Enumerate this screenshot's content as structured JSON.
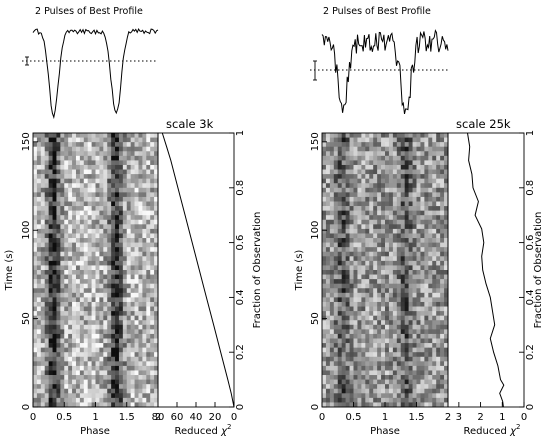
{
  "chart_data": [
    {
      "type": "heatmap",
      "panel": "left",
      "profile_title": "2 Pulses of Best Profile",
      "scale_label": "scale 3k",
      "grid_columns": 32,
      "grid_rows": 60,
      "contrast": 0.55,
      "phase_axis": {
        "label": "Phase",
        "range": [
          0,
          2
        ],
        "ticks": [
          0,
          0.5,
          1,
          1.5,
          2
        ],
        "tick_labels": [
          "0",
          "0.5",
          "1",
          "1.5",
          "2"
        ]
      },
      "time_axis": {
        "label": "Time (s)",
        "range": [
          0,
          155
        ],
        "ticks": [
          0,
          50,
          100,
          150
        ],
        "tick_labels": [
          "0",
          "50",
          "100",
          "150"
        ]
      },
      "chi2_axis": {
        "label": "Reduced χ²",
        "label_main": "Reduced",
        "label_symbol": "χ",
        "label_sup": "2",
        "range": [
          80,
          0
        ],
        "ticks": [
          80,
          60,
          40,
          20,
          0
        ],
        "tick_labels": [
          "80",
          "60",
          "40",
          "20",
          "0"
        ]
      },
      "fraction_axis": {
        "label": "Fraction of Observation",
        "range": [
          0,
          1
        ],
        "ticks": [
          0,
          0.2,
          0.4,
          0.6,
          0.8,
          1
        ],
        "tick_labels": [
          "0",
          "0.2",
          "0.4",
          "0.6",
          "0.8",
          "1"
        ]
      },
      "chi2_curve": {
        "fraction": [
          0,
          0.05,
          0.1,
          0.2,
          0.3,
          0.4,
          0.5,
          0.6,
          0.7,
          0.8,
          0.9,
          0.95,
          1.0
        ],
        "chi2": [
          0,
          3,
          6.5,
          14,
          21.5,
          29,
          36.5,
          44,
          51.5,
          59,
          66.5,
          71,
          75.5
        ]
      }
    },
    {
      "type": "heatmap",
      "panel": "right",
      "profile_title": "2 Pulses of Best Profile",
      "scale_label": "scale 25k",
      "grid_columns": 32,
      "grid_rows": 60,
      "contrast": 0.25,
      "phase_axis": {
        "label": "Phase",
        "range": [
          0,
          2
        ],
        "ticks": [
          0,
          0.5,
          1,
          1.5,
          2
        ],
        "tick_labels": [
          "0",
          "0.5",
          "1",
          "1.5",
          "2"
        ]
      },
      "time_axis": {
        "label": "Time (s)",
        "range": [
          0,
          155
        ],
        "ticks": [
          0,
          50,
          100,
          150
        ],
        "tick_labels": [
          "0",
          "50",
          "100",
          "150"
        ]
      },
      "chi2_axis": {
        "label": "Reduced χ²",
        "label_main": "Reduced",
        "label_symbol": "χ",
        "label_sup": "2",
        "range": [
          3.5,
          0
        ],
        "ticks": [
          3,
          2,
          1,
          0
        ],
        "tick_labels": [
          "3",
          "2",
          "1",
          "0"
        ]
      },
      "fraction_axis": {
        "label": "Fraction of Observation",
        "range": [
          0,
          1
        ],
        "ticks": [
          0,
          0.2,
          0.4,
          0.6,
          0.8,
          1
        ],
        "tick_labels": [
          "0",
          "0.2",
          "0.4",
          "0.6",
          "0.8",
          "1"
        ]
      },
      "chi2_curve": {
        "fraction": [
          0,
          0.02,
          0.05,
          0.08,
          0.1,
          0.15,
          0.2,
          0.25,
          0.3,
          0.35,
          0.4,
          0.45,
          0.5,
          0.55,
          0.6,
          0.65,
          0.7,
          0.75,
          0.8,
          0.85,
          0.9,
          0.95,
          1.0
        ],
        "chi2": [
          0.95,
          0.98,
          1.12,
          0.93,
          1.08,
          1.2,
          1.4,
          1.55,
          1.35,
          1.45,
          1.55,
          1.75,
          1.9,
          1.95,
          1.85,
          1.95,
          2.25,
          2.1,
          2.35,
          2.4,
          2.55,
          2.5,
          2.6
        ]
      }
    }
  ]
}
